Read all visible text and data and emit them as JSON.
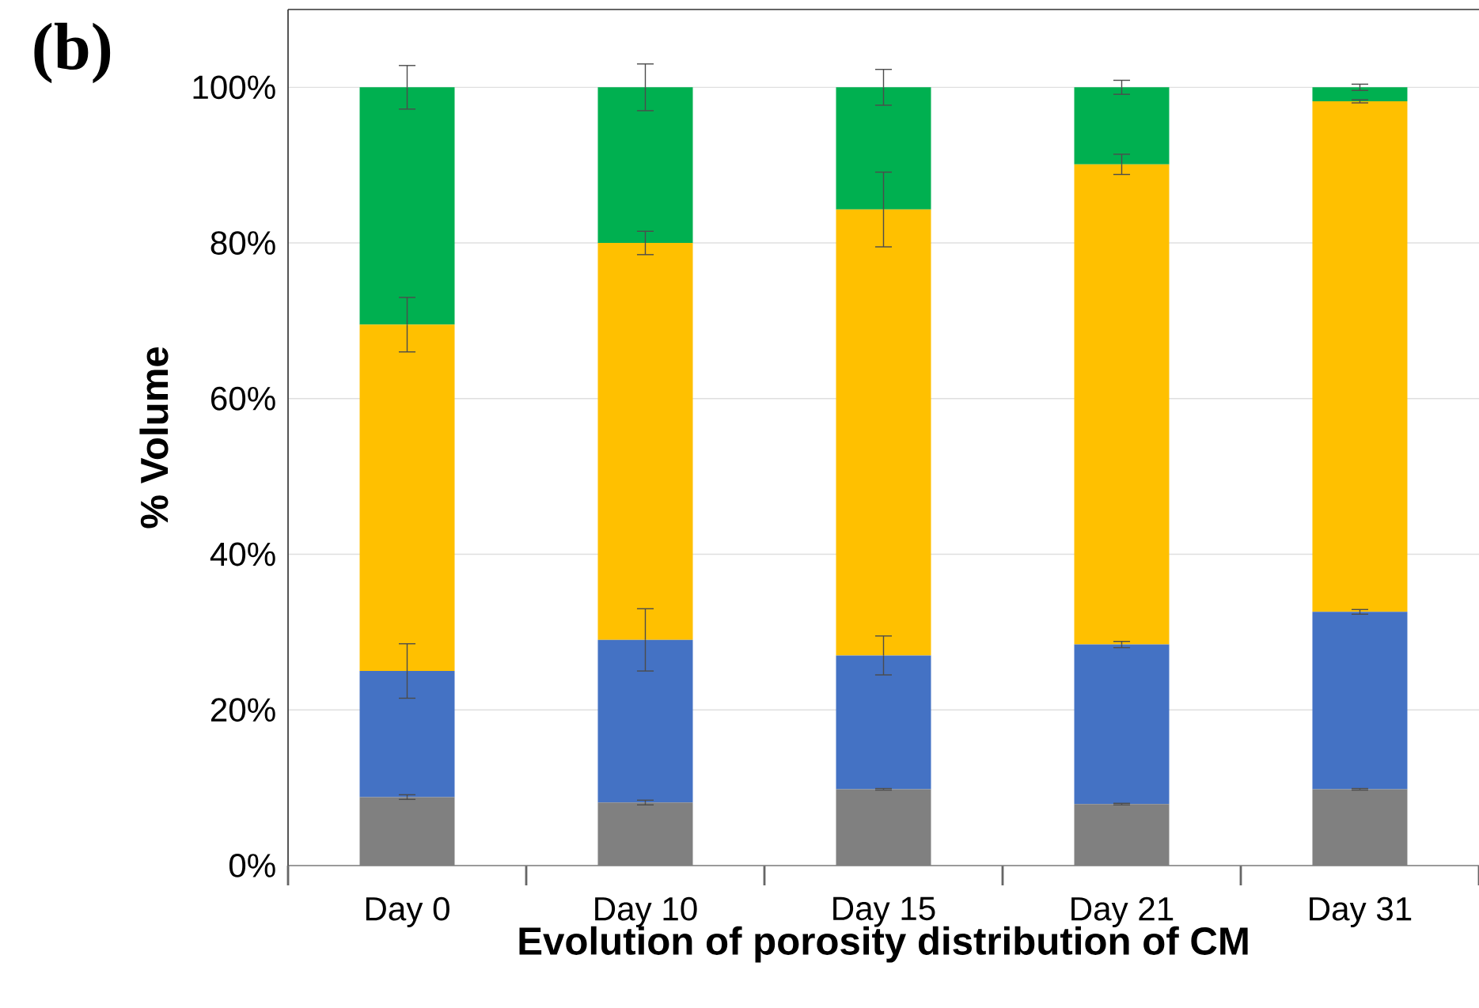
{
  "chart_data": {
    "type": "bar",
    "stacked": true,
    "categories": [
      "Day 0",
      "Day 10",
      "Day 15",
      "Day 21",
      "Day 31"
    ],
    "series": [
      {
        "color": "#808080",
        "values": [
          8.8,
          8.1,
          9.8,
          7.9,
          9.8
        ],
        "errors": [
          0.3,
          0.3,
          0.1,
          0.1,
          0.1
        ]
      },
      {
        "color": "#4472c4",
        "values": [
          16.2,
          20.9,
          17.2,
          20.5,
          22.8
        ],
        "errors": [
          3.5,
          4,
          2.5,
          0.4,
          0.3
        ]
      },
      {
        "color": "#ffc000",
        "values": [
          44.5,
          51.0,
          57.3,
          61.7,
          65.6
        ],
        "errors": [
          3.5,
          1.5,
          4.8,
          1.3,
          0.2
        ]
      },
      {
        "color": "#00b050",
        "values": [
          30.5,
          20.0,
          15.7,
          9.9,
          1.8
        ],
        "errors": [
          2.8,
          3,
          2.3,
          0.9,
          0.4
        ]
      }
    ],
    "xlabel": "Evolution of porosity distribution of CM",
    "ylabel": "% Volume",
    "ylim": [
      0,
      110
    ],
    "yticks": [
      {
        "value": 0,
        "label": "0%"
      },
      {
        "value": 20,
        "label": "20%"
      },
      {
        "value": 40,
        "label": "40%"
      },
      {
        "value": 60,
        "label": "60%"
      },
      {
        "value": 80,
        "label": "80%"
      },
      {
        "value": 100,
        "label": "100%"
      }
    ],
    "grid": "y",
    "annotations": [
      "(b)"
    ]
  }
}
